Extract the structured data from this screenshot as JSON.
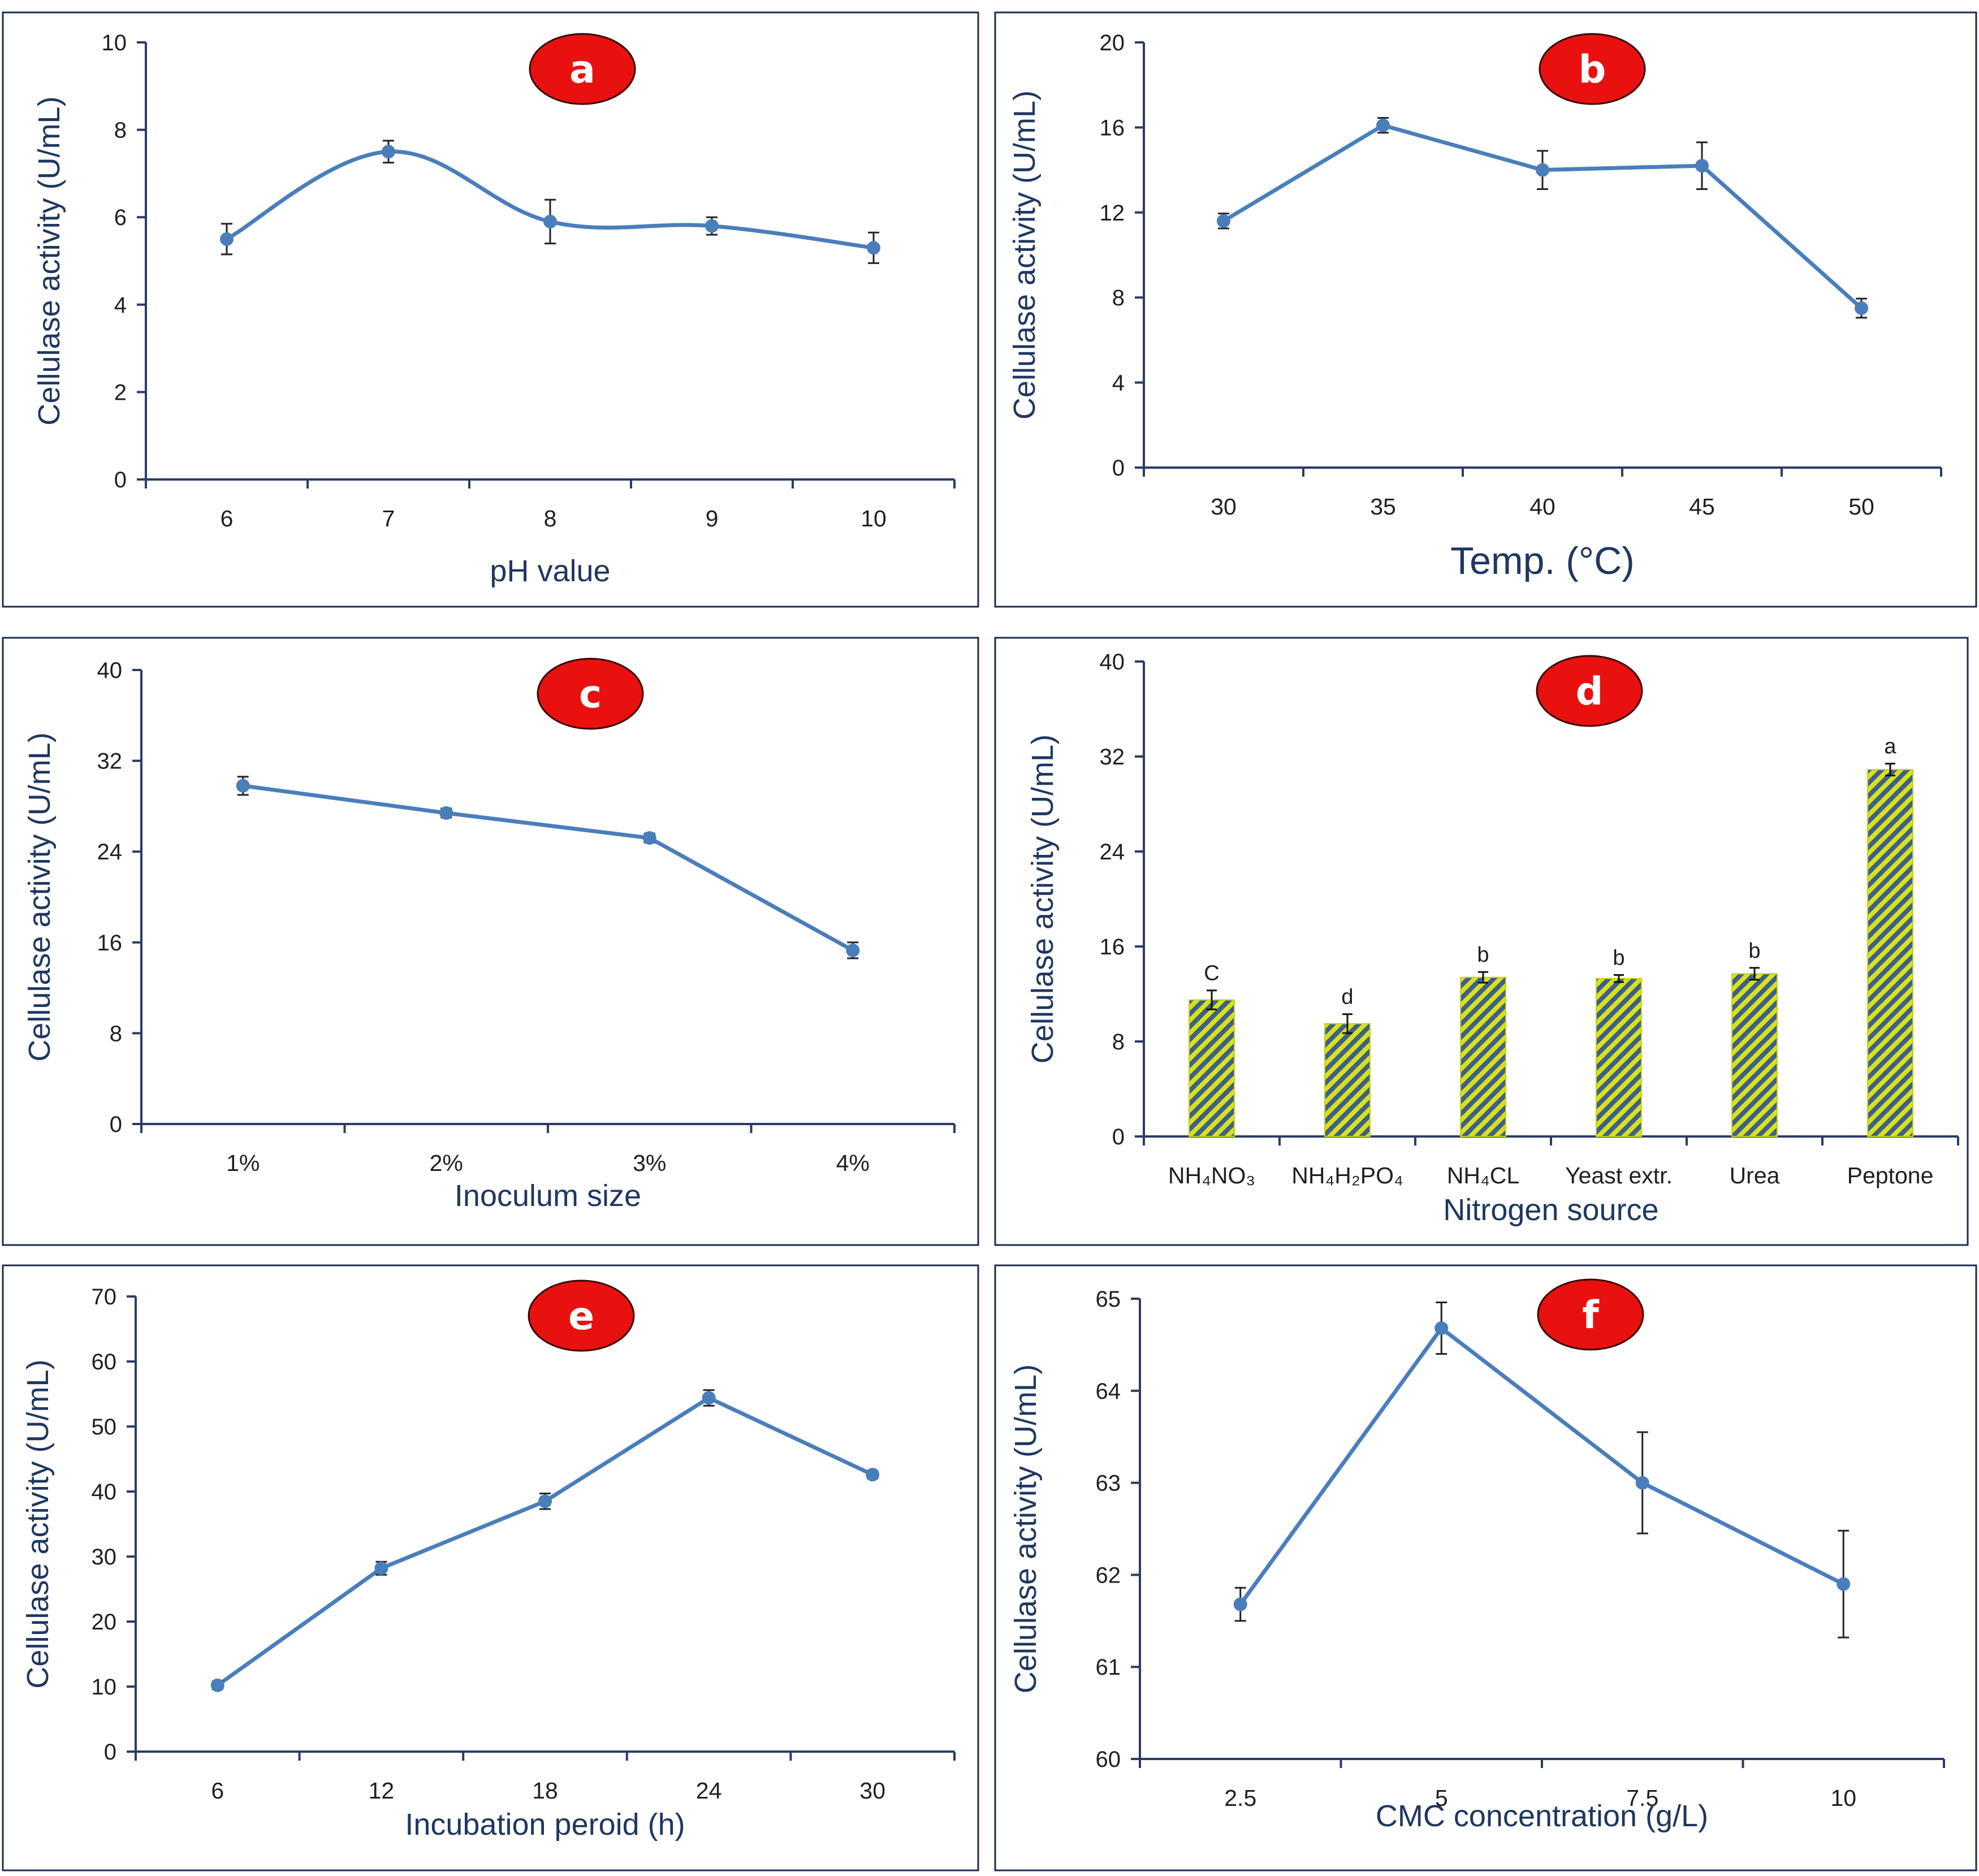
{
  "colors": {
    "line": "#4a7ebb",
    "axis": "#2b3a67",
    "frame": "#1e2a4f",
    "badge_fill": "#e8110f",
    "badge_stroke": "#3a0000",
    "badge_text": "#ffffff",
    "bar_stripe_a": "#d6e21c",
    "bar_stripe_b": "#3f5f8a",
    "label": "#1f3760"
  },
  "chart_data": [
    {
      "panel": "a",
      "type": "line",
      "smooth": true,
      "title": "",
      "xlabel": "pH value",
      "ylabel": "Cellulase activity (U/mL)",
      "categories": [
        "6",
        "7",
        "8",
        "9",
        "10"
      ],
      "values": [
        5.5,
        7.5,
        5.9,
        5.8,
        5.3
      ],
      "errors": [
        0.35,
        0.25,
        0.5,
        0.2,
        0.35
      ],
      "ylim": [
        0,
        10
      ],
      "yticks": [
        0,
        2,
        4,
        6,
        8,
        10
      ]
    },
    {
      "panel": "b",
      "type": "line",
      "smooth": false,
      "title": "",
      "xlabel": "Temp. (°C)",
      "ylabel": "Cellulase activity (U/mL)",
      "categories": [
        "30",
        "35",
        "40",
        "45",
        "50"
      ],
      "values": [
        11.6,
        16.1,
        14.0,
        14.2,
        7.5
      ],
      "errors": [
        0.35,
        0.35,
        0.9,
        1.1,
        0.45
      ],
      "ylim": [
        0,
        20
      ],
      "yticks": [
        0,
        4,
        8,
        12,
        16,
        20
      ]
    },
    {
      "panel": "c",
      "type": "line",
      "smooth": false,
      "title": "",
      "xlabel": "Inoculum size",
      "ylabel": "Cellulase activity (U/mL)",
      "categories": [
        "1%",
        "2%",
        "3%",
        "4%"
      ],
      "values": [
        29.8,
        27.4,
        25.2,
        15.3
      ],
      "errors": [
        0.8,
        0.4,
        0.4,
        0.7
      ],
      "ylim": [
        0,
        40
      ],
      "yticks": [
        0,
        8,
        16,
        24,
        32,
        40
      ]
    },
    {
      "panel": "d",
      "type": "bar",
      "title": "",
      "xlabel": "Nitrogen source",
      "ylabel": "Cellulase activity (U/mL)",
      "categories": [
        "NH₄NO₃",
        "NH₄H₂PO₄",
        "NH₄CL",
        "Yeast extr.",
        "Urea",
        "Peptone"
      ],
      "values": [
        11.5,
        9.5,
        13.4,
        13.3,
        13.7,
        30.9
      ],
      "errors": [
        0.8,
        0.8,
        0.45,
        0.3,
        0.5,
        0.5
      ],
      "letters": [
        "C",
        "d",
        "b",
        "b",
        "b",
        "a"
      ],
      "ylim": [
        0,
        40
      ],
      "yticks": [
        0,
        8,
        16,
        24,
        32,
        40
      ]
    },
    {
      "panel": "e",
      "type": "line",
      "smooth": false,
      "title": "",
      "xlabel": "Incubation peroid (h)",
      "ylabel": "Cellulase activity (U/mL)",
      "categories": [
        "6",
        "12",
        "18",
        "24",
        "30"
      ],
      "values": [
        10.2,
        28.2,
        38.5,
        54.4,
        42.6
      ],
      "errors": [
        0.6,
        1.0,
        1.2,
        1.2,
        0.6
      ],
      "ylim": [
        0,
        70
      ],
      "yticks": [
        0,
        10,
        20,
        30,
        40,
        50,
        60,
        70
      ]
    },
    {
      "panel": "f",
      "type": "line",
      "smooth": false,
      "title": "",
      "xlabel": "CMC concentration (g/L)",
      "ylabel": "Cellulase activity (U/mL)",
      "categories": [
        "2.5",
        "5",
        "7.5",
        "10"
      ],
      "values": [
        61.68,
        64.68,
        63.0,
        61.9
      ],
      "errors": [
        0.18,
        0.28,
        0.55,
        0.58
      ],
      "ylim": [
        60,
        65
      ],
      "yticks": [
        60,
        61,
        62,
        63,
        64,
        65
      ]
    }
  ]
}
